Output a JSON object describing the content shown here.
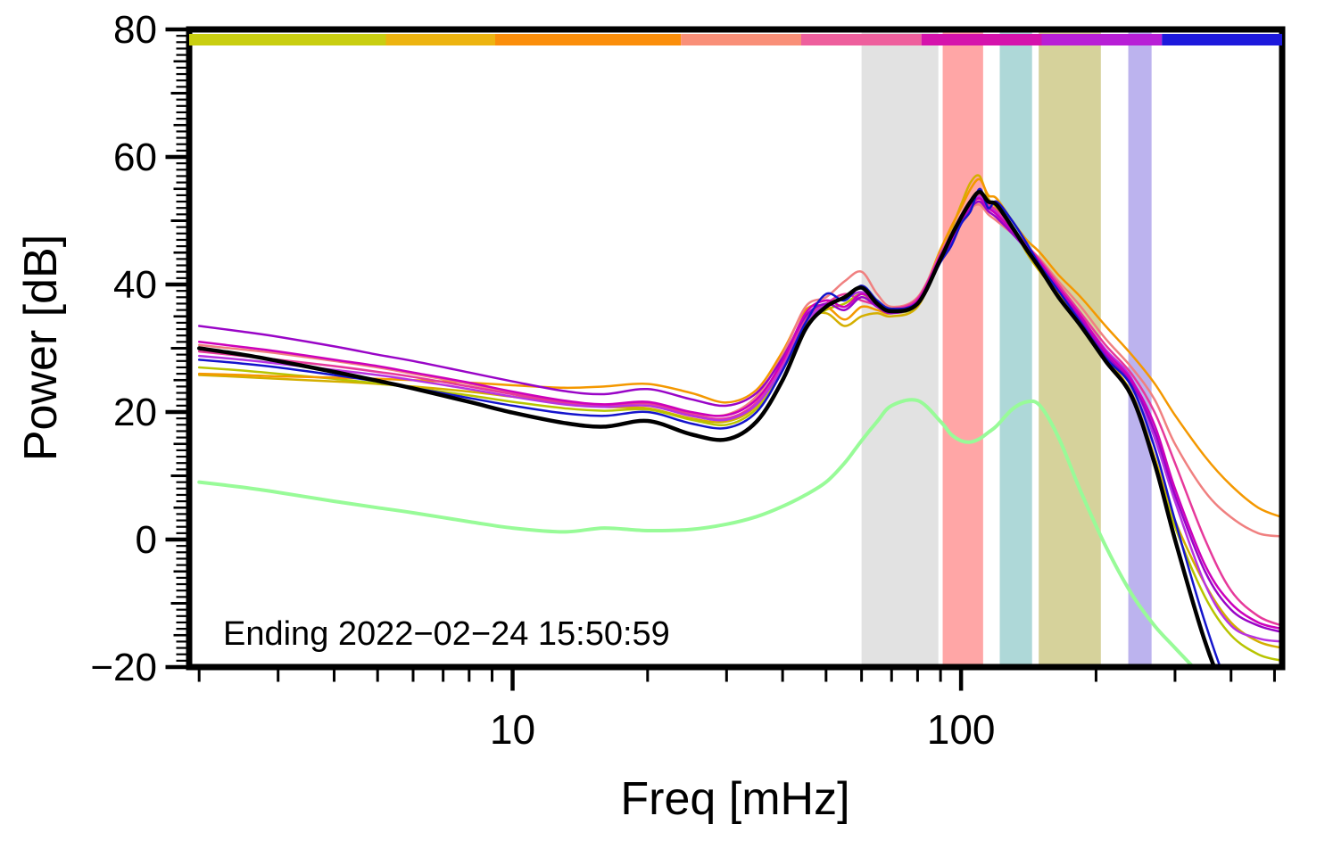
{
  "chart_data": {
    "type": "line",
    "title": "",
    "xlabel": "Freq [mHz]",
    "ylabel": "Power [dB]",
    "annotation": "Ending 2022−02−24 15:50:59",
    "xscale": "log",
    "xlim": [
      1.9,
      520
    ],
    "ylim": [
      -20,
      80
    ],
    "grid": false,
    "legend": "none",
    "background": "#ffffff",
    "frame_color": "#000000",
    "yticks": [
      {
        "v": -20,
        "label": "−20"
      },
      {
        "v": 0,
        "label": "0"
      },
      {
        "v": 20,
        "label": "20"
      },
      {
        "v": 40,
        "label": "40"
      },
      {
        "v": 60,
        "label": "60"
      },
      {
        "v": 80,
        "label": "80"
      }
    ],
    "xticks": [
      {
        "v": 10,
        "label": "10"
      },
      {
        "v": 100,
        "label": "100"
      }
    ],
    "bands": [
      {
        "name": "band-gray",
        "x0": 60,
        "x1": 89,
        "color": "#e2e2e2"
      },
      {
        "name": "band-red",
        "x0": 91,
        "x1": 112,
        "color": "#ffa6a6"
      },
      {
        "name": "band-teal",
        "x0": 122,
        "x1": 144,
        "color": "#aed8d8"
      },
      {
        "name": "band-olive",
        "x0": 149,
        "x1": 205,
        "color": "#d6d29b"
      },
      {
        "name": "band-purple",
        "x0": 236,
        "x1": 266,
        "color": "#bcb3ee"
      }
    ],
    "colorbar": {
      "name": "time-colorbar",
      "segments": [
        {
          "to": 0.18,
          "color": "#c9ce11"
        },
        {
          "to": 0.28,
          "color": "#edb410"
        },
        {
          "to": 0.45,
          "color": "#fb8e0a"
        },
        {
          "to": 0.56,
          "color": "#f98f78"
        },
        {
          "to": 0.67,
          "color": "#ee5f9d"
        },
        {
          "to": 0.78,
          "color": "#d513ac"
        },
        {
          "to": 0.89,
          "color": "#b81fd6"
        },
        {
          "to": 1.0,
          "color": "#1d19dc"
        }
      ]
    },
    "x": [
      2,
      2.5,
      3,
      4,
      5,
      6,
      8,
      10,
      13,
      16,
      20,
      25,
      30,
      35,
      40,
      45,
      50,
      55,
      60,
      65,
      70,
      80,
      90,
      95,
      100,
      105,
      110,
      115,
      120,
      130,
      140,
      150,
      165,
      185,
      210,
      240,
      270,
      300,
      350,
      400,
      460,
      520
    ],
    "series": [
      {
        "name": "gold",
        "color": "#d4af00",
        "width": 2.5,
        "values": [
          25.8,
          25.5,
          25.2,
          24.8,
          24.4,
          24,
          23.2,
          22.4,
          21.4,
          20.8,
          20.6,
          19,
          18.5,
          21,
          27.5,
          34.5,
          35.5,
          33.5,
          35,
          35.5,
          35,
          36.5,
          44.5,
          48.5,
          52.5,
          56,
          57,
          53.5,
          52,
          49,
          45,
          42,
          38.5,
          34,
          28.5,
          23,
          13,
          3,
          -7,
          -13,
          -16,
          -17
        ]
      },
      {
        "name": "yellow-green",
        "color": "#b8c400",
        "width": 2.5,
        "values": [
          27,
          26.5,
          26,
          25.2,
          24.5,
          23.8,
          22.6,
          21.6,
          20.6,
          20.2,
          20.4,
          18.8,
          18,
          20.5,
          26.5,
          33.5,
          36,
          37,
          38.5,
          36.8,
          35.6,
          36.8,
          44.2,
          47.2,
          50.2,
          52.8,
          54,
          52.4,
          51.4,
          48.6,
          45.2,
          42.2,
          38.2,
          33.8,
          28.2,
          22.8,
          12.5,
          2,
          -9,
          -15,
          -18,
          -19
        ]
      },
      {
        "name": "orange",
        "color": "#f49800",
        "width": 2.5,
        "values": [
          26,
          25.8,
          25.6,
          25.4,
          25.2,
          25,
          24.6,
          24.2,
          23.8,
          24,
          24.4,
          23,
          21.5,
          23.5,
          29.5,
          36,
          36.5,
          34.5,
          36.5,
          36,
          35.5,
          37.5,
          45.5,
          49,
          52,
          55,
          56.5,
          54,
          53.5,
          50,
          47,
          45,
          41.5,
          38,
          33.5,
          29,
          24.5,
          19.5,
          13,
          8.5,
          5,
          3.5
        ]
      },
      {
        "name": "salmon",
        "color": "#f08080",
        "width": 2.5,
        "values": [
          30.5,
          29.8,
          29.2,
          28,
          27,
          26,
          24.4,
          23,
          21.6,
          21,
          21.2,
          19.8,
          19.6,
          22.5,
          29,
          36.5,
          38,
          40.5,
          42,
          38.5,
          36.5,
          38,
          45,
          48,
          50.5,
          52,
          52.5,
          51,
          50,
          48,
          46,
          44,
          40.5,
          36.5,
          31.5,
          27,
          22,
          15,
          7.5,
          3.5,
          1,
          0.5
        ]
      },
      {
        "name": "deep-pink",
        "color": "#e6399b",
        "width": 2.5,
        "values": [
          29.5,
          28.8,
          28.2,
          27.2,
          26.3,
          25.5,
          24,
          22.8,
          21.5,
          21,
          21.4,
          19.6,
          19,
          21.5,
          27.5,
          34.5,
          37,
          38.5,
          37.5,
          36.8,
          36.2,
          37.8,
          44.8,
          47.8,
          50.8,
          53.2,
          54.2,
          52.6,
          51.6,
          48.8,
          46.2,
          43.8,
          40,
          35.5,
          30.5,
          26,
          20,
          12,
          0,
          -8,
          -12,
          -13.5
        ]
      },
      {
        "name": "violet",
        "color": "#b833e1",
        "width": 2.5,
        "values": [
          28.8,
          28.2,
          27.6,
          26.6,
          25.8,
          25,
          23.6,
          22.4,
          21.2,
          20.8,
          21,
          19.4,
          18.8,
          21.2,
          27,
          34,
          36.8,
          37.8,
          38.8,
          37.2,
          36,
          37.4,
          44.4,
          47.4,
          50.4,
          52.6,
          53.8,
          52.2,
          51.2,
          48.4,
          45.8,
          43.2,
          39.4,
          34.8,
          29.8,
          25.2,
          16,
          6,
          -7,
          -13.5,
          -15.5,
          -16
        ]
      },
      {
        "name": "purple",
        "color": "#9905c7",
        "width": 2.5,
        "values": [
          33.5,
          32.6,
          31.8,
          30.3,
          29,
          28,
          26.2,
          24.8,
          23.3,
          22.8,
          23.6,
          22,
          21,
          23,
          28.5,
          35,
          37,
          36,
          38,
          36.5,
          35.5,
          37,
          44,
          46.5,
          49.5,
          52,
          53,
          51.5,
          50.5,
          48,
          45.5,
          43,
          39,
          34.5,
          29,
          24.5,
          17,
          7,
          -5,
          -11,
          -13.5,
          -14.5
        ]
      },
      {
        "name": "magenta",
        "color": "#cc00bb",
        "width": 2.5,
        "values": [
          31,
          30.2,
          29.5,
          28.2,
          27.2,
          26.2,
          24.6,
          23.2,
          21.8,
          21.2,
          21.6,
          20,
          19.5,
          22,
          28,
          35.5,
          37.5,
          36.5,
          38.5,
          37,
          36,
          37.5,
          44.5,
          47,
          50,
          52.5,
          53.5,
          52,
          51,
          48.5,
          46,
          43.5,
          39.5,
          35,
          29.5,
          25,
          18,
          8,
          -4,
          -10,
          -13,
          -14
        ]
      },
      {
        "name": "blue",
        "color": "#1414cc",
        "width": 2.5,
        "values": [
          28.2,
          27.6,
          27,
          25.8,
          24.8,
          23.8,
          22.2,
          21,
          19.8,
          19.4,
          20,
          18.2,
          17.5,
          20,
          26.5,
          34,
          38.5,
          37.5,
          39.8,
          37.5,
          36.2,
          37.2,
          43.5,
          46,
          49.5,
          51.5,
          55,
          52,
          53,
          50,
          46.5,
          43,
          39,
          34,
          28.5,
          24,
          14.5,
          3,
          -13,
          -24,
          -30,
          -34
        ]
      },
      {
        "name": "pale-green",
        "color": "#98fb98",
        "width": 4,
        "values": [
          9,
          8.2,
          7.4,
          6,
          5,
          4.2,
          2.8,
          1.8,
          1.2,
          1.8,
          1.4,
          1.6,
          2.4,
          3.6,
          5.2,
          7,
          9,
          12,
          15.5,
          18.5,
          21,
          21.8,
          18.5,
          16.5,
          15.5,
          15.3,
          15.8,
          16.8,
          17.8,
          20.4,
          21.6,
          21,
          16,
          7.5,
          -1,
          -8.5,
          -13.5,
          -17,
          -22,
          -27,
          -32,
          -36
        ]
      },
      {
        "name": "black-mean",
        "color": "#000000",
        "width": 4.5,
        "values": [
          30,
          29,
          28,
          26.3,
          24.9,
          23.7,
          21.6,
          19.9,
          18.3,
          17.7,
          18.6,
          16.5,
          15.7,
          18.5,
          25,
          33,
          36.5,
          38,
          39.5,
          37,
          35.8,
          37,
          44,
          47.5,
          50.5,
          53,
          54.5,
          53,
          52.5,
          49,
          45.5,
          42.5,
          38,
          33.5,
          28,
          22.5,
          12,
          0,
          -16,
          -26,
          -32,
          -36
        ]
      }
    ]
  }
}
